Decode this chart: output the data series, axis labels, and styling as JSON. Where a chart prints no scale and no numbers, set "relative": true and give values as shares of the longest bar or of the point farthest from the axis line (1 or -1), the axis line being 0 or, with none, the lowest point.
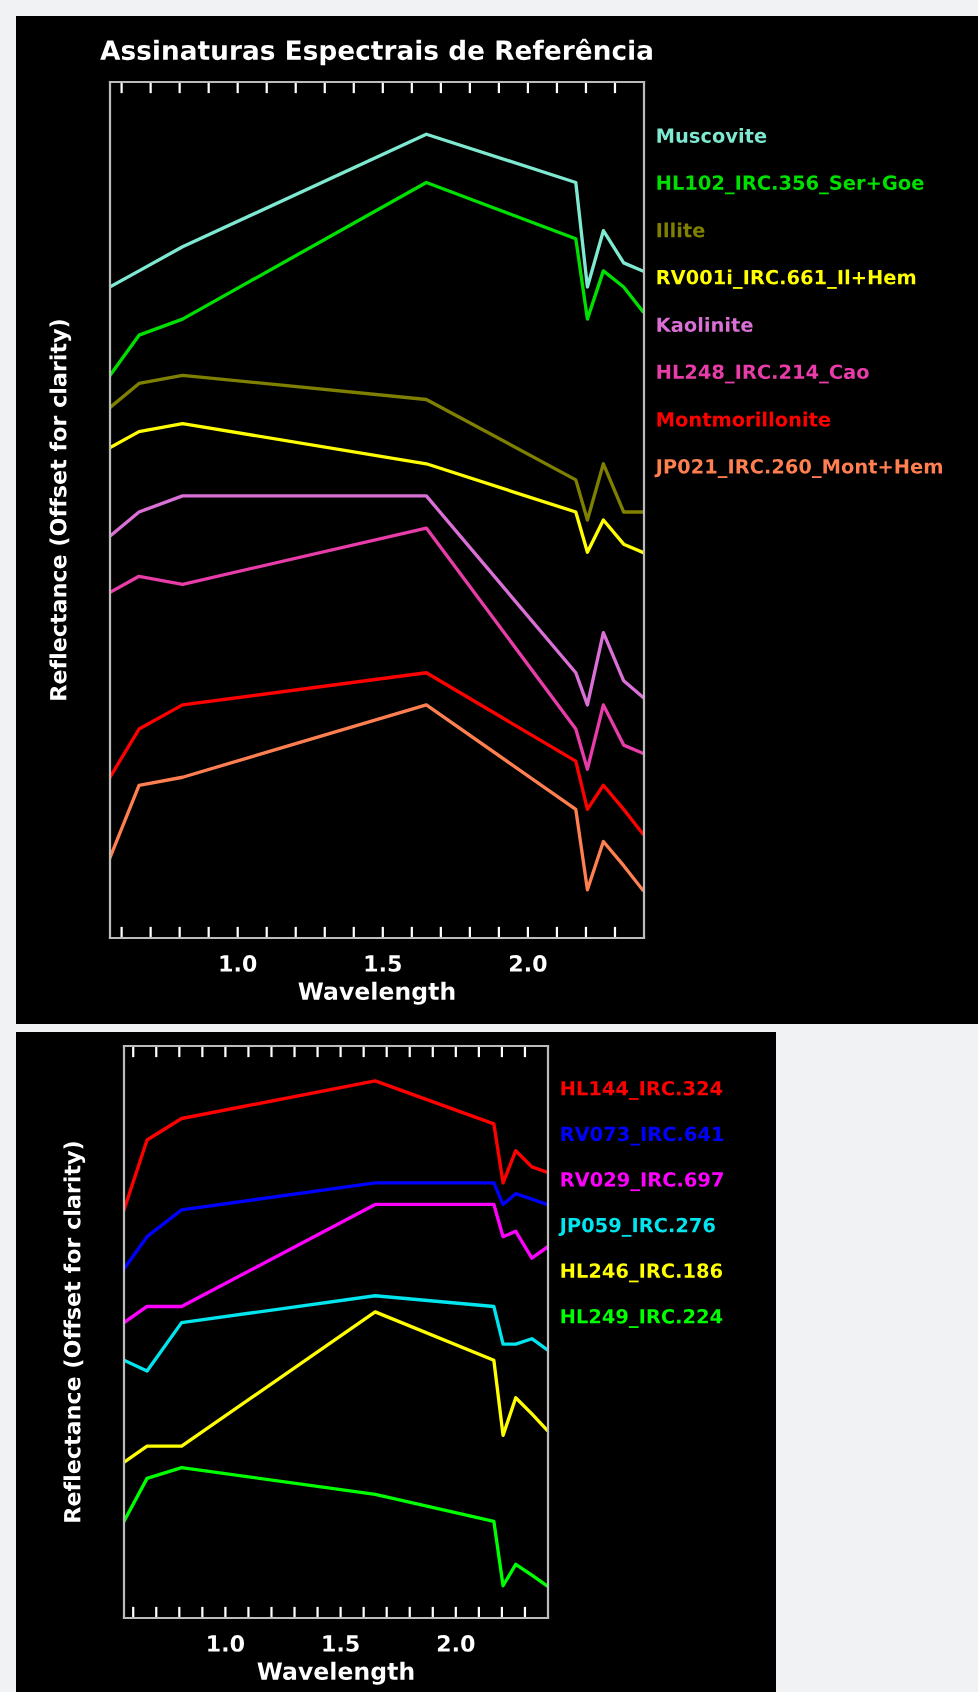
{
  "chart_data": [
    {
      "type": "line",
      "title": "Assinaturas Espectrais de Referência",
      "xlabel": "Wavelength",
      "ylabel": "Reflectance (Offset for clarity)",
      "relative": true,
      "legend": "right",
      "grid": false,
      "x": [
        0.56,
        0.66,
        0.81,
        1.65,
        2.165,
        2.205,
        2.26,
        2.33,
        2.395
      ],
      "xlim": [
        0.56,
        2.4
      ],
      "xticks": [
        {
          "value": 0.6,
          "label": null
        },
        {
          "value": 0.7,
          "label": null
        },
        {
          "value": 0.8,
          "label": null
        },
        {
          "value": 0.9,
          "label": null
        },
        {
          "value": 1.0,
          "label": "1.0"
        },
        {
          "value": 1.1,
          "label": null
        },
        {
          "value": 1.2,
          "label": null
        },
        {
          "value": 1.3,
          "label": null
        },
        {
          "value": 1.4,
          "label": null
        },
        {
          "value": 1.5,
          "label": "1.5"
        },
        {
          "value": 1.6,
          "label": null
        },
        {
          "value": 1.7,
          "label": null
        },
        {
          "value": 1.8,
          "label": null
        },
        {
          "value": 1.9,
          "label": null
        },
        {
          "value": 2.0,
          "label": "2.0"
        },
        {
          "value": 2.1,
          "label": null
        },
        {
          "value": 2.2,
          "label": null
        },
        {
          "value": 2.3,
          "label": null
        }
      ],
      "series": [
        {
          "name": "Muscovite",
          "color": "#7fe8d0",
          "values": [
            0.81,
            0.83,
            0.86,
            1.0,
            0.94,
            0.81,
            0.88,
            0.84,
            0.83
          ]
        },
        {
          "name": "HL102_IRC.356_Ser+Goe",
          "color": "#00e000",
          "values": [
            0.7,
            0.75,
            0.77,
            0.94,
            0.87,
            0.77,
            0.83,
            0.81,
            0.78
          ]
        },
        {
          "name": "Illite",
          "color": "#808000",
          "values": [
            0.66,
            0.69,
            0.7,
            0.67,
            0.57,
            0.52,
            0.59,
            0.53,
            0.53
          ]
        },
        {
          "name": "RV001i_IRC.661_Il+Hem",
          "color": "#ffff00",
          "values": [
            0.61,
            0.63,
            0.64,
            0.59,
            0.53,
            0.48,
            0.52,
            0.49,
            0.48
          ]
        },
        {
          "name": "Kaolinite",
          "color": "#da70d6",
          "values": [
            0.5,
            0.53,
            0.55,
            0.55,
            0.33,
            0.29,
            0.38,
            0.32,
            0.3
          ]
        },
        {
          "name": "HL248_IRC.214_Cao",
          "color": "#e83ca8",
          "values": [
            0.43,
            0.45,
            0.44,
            0.51,
            0.26,
            0.21,
            0.29,
            0.24,
            0.23
          ]
        },
        {
          "name": "Montmorillonite",
          "color": "#ff0000",
          "values": [
            0.2,
            0.26,
            0.29,
            0.33,
            0.22,
            0.16,
            0.19,
            0.16,
            0.13
          ]
        },
        {
          "name": "JP021_IRC.260_Mont+Hem",
          "color": "#ff7f50",
          "values": [
            0.1,
            0.19,
            0.2,
            0.29,
            0.16,
            0.06,
            0.12,
            0.09,
            0.06
          ]
        }
      ]
    },
    {
      "type": "line",
      "xlabel": "Wavelength",
      "ylabel": "Reflectance (Offset for clarity)",
      "relative": true,
      "legend": "right",
      "grid": false,
      "x": [
        0.56,
        0.66,
        0.81,
        1.65,
        2.165,
        2.205,
        2.26,
        2.33,
        2.395
      ],
      "xlim": [
        0.56,
        2.4
      ],
      "xticks": [
        {
          "value": 0.6,
          "label": null
        },
        {
          "value": 0.7,
          "label": null
        },
        {
          "value": 0.8,
          "label": null
        },
        {
          "value": 0.9,
          "label": null
        },
        {
          "value": 1.0,
          "label": "1.0"
        },
        {
          "value": 1.1,
          "label": null
        },
        {
          "value": 1.2,
          "label": null
        },
        {
          "value": 1.3,
          "label": null
        },
        {
          "value": 1.4,
          "label": null
        },
        {
          "value": 1.5,
          "label": "1.5"
        },
        {
          "value": 1.6,
          "label": null
        },
        {
          "value": 1.7,
          "label": null
        },
        {
          "value": 1.8,
          "label": null
        },
        {
          "value": 1.9,
          "label": null
        },
        {
          "value": 2.0,
          "label": "2.0"
        },
        {
          "value": 2.1,
          "label": null
        },
        {
          "value": 2.2,
          "label": null
        },
        {
          "value": 2.3,
          "label": null
        }
      ],
      "series": [
        {
          "name": "HL144_IRC.324",
          "color": "#ff0000",
          "values": [
            0.76,
            0.89,
            0.93,
            1.0,
            0.92,
            0.81,
            0.87,
            0.84,
            0.83
          ]
        },
        {
          "name": "RV073_IRC.641",
          "color": "#0000ff",
          "values": [
            0.65,
            0.71,
            0.76,
            0.81,
            0.81,
            0.77,
            0.79,
            0.78,
            0.77
          ]
        },
        {
          "name": "RV029_IRC.697",
          "color": "#ff00ff",
          "values": [
            0.55,
            0.58,
            0.58,
            0.77,
            0.77,
            0.71,
            0.72,
            0.67,
            0.69
          ]
        },
        {
          "name": "JP059_IRC.276",
          "color": "#00e5ee",
          "values": [
            0.48,
            0.46,
            0.55,
            0.6,
            0.58,
            0.51,
            0.51,
            0.52,
            0.5
          ]
        },
        {
          "name": "HL246_IRC.186",
          "color": "#ffff00",
          "values": [
            0.29,
            0.32,
            0.32,
            0.57,
            0.48,
            0.34,
            0.41,
            0.38,
            0.35
          ]
        },
        {
          "name": "HL249_IRC.224",
          "color": "#00ff00",
          "values": [
            0.18,
            0.26,
            0.28,
            0.23,
            0.18,
            0.06,
            0.1,
            0.08,
            0.06
          ]
        }
      ]
    }
  ]
}
